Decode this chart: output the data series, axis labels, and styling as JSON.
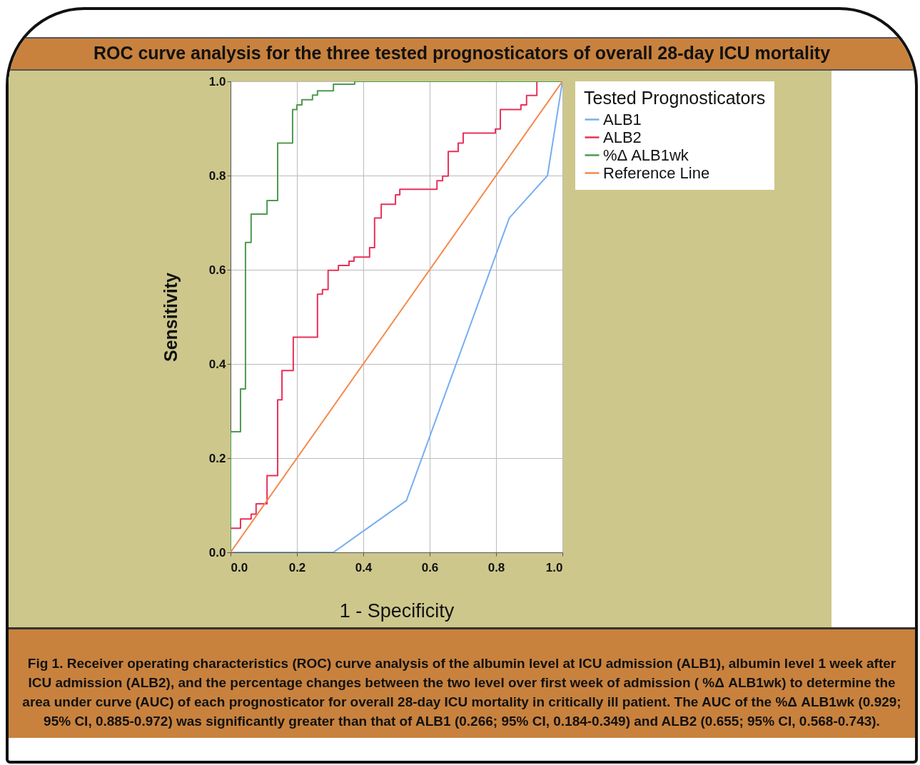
{
  "chart_data": {
    "type": "line",
    "title": "ROC curve analysis for the three tested prognosticators of overall 28-day ICU mortality",
    "xlabel": "1 - Specificity",
    "ylabel": "Sensitivity",
    "legend_title": "Tested Prognosticators",
    "xlim": [
      0,
      1
    ],
    "ylim": [
      0,
      1
    ],
    "xticks": [
      {
        "value": 0,
        "label": "0.0"
      },
      {
        "value": 0.2,
        "label": "0.2"
      },
      {
        "value": 0.4,
        "label": "0.4"
      },
      {
        "value": 0.6,
        "label": "0.6"
      },
      {
        "value": 0.8,
        "label": "0.8"
      },
      {
        "value": 1,
        "label": "1.0"
      }
    ],
    "yticks": [
      {
        "value": 0,
        "label": "0.0"
      },
      {
        "value": 0.2,
        "label": "0.2"
      },
      {
        "value": 0.4,
        "label": "0.4"
      },
      {
        "value": 0.6,
        "label": "0.6"
      },
      {
        "value": 0.8,
        "label": "0.8"
      },
      {
        "value": 1,
        "label": "1.0"
      }
    ],
    "grid": true,
    "legend": "top right",
    "series": [
      {
        "name": "ALB1",
        "type": "line",
        "color": "#78aef0",
        "x": [
          0,
          0.31,
          0.43,
          0.53,
          0.84,
          0.955,
          1
        ],
        "values": [
          0,
          0,
          0.06,
          0.11,
          0.71,
          0.8,
          1
        ]
      },
      {
        "name": "ALB2",
        "type": "step",
        "color": "#e8315a",
        "x": [
          0,
          0.03,
          0.062,
          0.077,
          0.11,
          0.142,
          0.155,
          0.189,
          0.262,
          0.277,
          0.294,
          0.325,
          0.357,
          0.372,
          0.419,
          0.434,
          0.454,
          0.497,
          0.51,
          0.622,
          0.639,
          0.656,
          0.686,
          0.701,
          0.798,
          0.813,
          0.875,
          0.892,
          0.923,
          1
        ],
        "values": [
          0.051,
          0.071,
          0.081,
          0.103,
          0.163,
          0.324,
          0.386,
          0.457,
          0.548,
          0.558,
          0.599,
          0.609,
          0.618,
          0.627,
          0.647,
          0.71,
          0.739,
          0.759,
          0.771,
          0.789,
          0.799,
          0.851,
          0.869,
          0.89,
          0.899,
          0.94,
          0.95,
          0.97,
          1,
          1
        ]
      },
      {
        "name": "%Δ ALB1wk",
        "type": "step",
        "color": "#4e9a4e",
        "x": [
          0,
          0,
          0.03,
          0.045,
          0.062,
          0.11,
          0.142,
          0.187,
          0.2,
          0.215,
          0.247,
          0.262,
          0.31,
          0.374,
          1
        ],
        "values": [
          0,
          0.256,
          0.347,
          0.658,
          0.718,
          0.747,
          0.869,
          0.94,
          0.95,
          0.961,
          0.971,
          0.98,
          0.994,
          1,
          1
        ]
      },
      {
        "name": "Reference Line",
        "type": "line",
        "color": "#f5894b",
        "x": [
          0,
          1
        ],
        "values": [
          0,
          1
        ]
      }
    ],
    "annotations": [
      "Fig 1. Receiver operating characteristics (ROC) curve analysis of the albumin level at ICU admission (ALB1), albumin level 1 week after ICU admission (ALB2), and the percentage changes between the two level over first week of admission ( %Δ ALB1wk) to determine the area under curve (AUC) of each prognosticator for overall 28-day ICU mortality in critically ill patient. The AUC of the %Δ ALB1wk (0.929; 95% CI, 0.885-0.972) was significantly greater than that of ALB1 (0.266; 95% CI, 0.184-0.349) and ALB2 (0.655; 95% CI, 0.568-0.743)."
    ]
  }
}
